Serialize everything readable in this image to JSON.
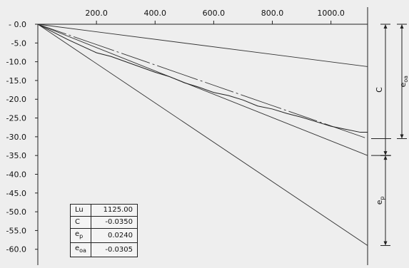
{
  "chart_data": {
    "type": "line",
    "title": "",
    "xlabel": "",
    "ylabel": "",
    "x_axis_position": "top",
    "xlim": [
      0,
      1125
    ],
    "ylim": [
      -61,
      0
    ],
    "xticks": [
      200,
      400,
      600,
      800,
      1000
    ],
    "xtick_labels": [
      "200.0",
      "400.0",
      "600.0",
      "800.0",
      "1000.0"
    ],
    "yticks": [
      0,
      -5,
      -10,
      -15,
      -20,
      -25,
      -30,
      -35,
      -40,
      -45,
      -50,
      -55,
      -60
    ],
    "ytick_labels": [
      "- 0.0",
      "-5.0",
      "-10.0",
      "-15.0",
      "-20.0",
      "-25.0",
      "-30.0",
      "-35.0",
      "-40.0",
      "-45.0",
      "-50.0",
      "-55.0",
      "-60.0"
    ],
    "grid": false,
    "series": [
      {
        "style": "straight",
        "x": [
          0,
          1125
        ],
        "y": [
          0,
          -11.3
        ],
        "color": "#333333"
      },
      {
        "style": "straight",
        "x": [
          0,
          1125
        ],
        "y": [
          0,
          -35.0
        ],
        "color": "#333333"
      },
      {
        "style": "straight",
        "x": [
          0,
          1125
        ],
        "y": [
          0,
          -59.0
        ],
        "color": "#333333"
      },
      {
        "style": "dash-dot",
        "x": [
          0,
          1125
        ],
        "y": [
          0,
          -30.5
        ],
        "color": "#333333"
      },
      {
        "style": "noisy",
        "x": [
          0,
          50,
          100,
          150,
          200,
          250,
          300,
          350,
          400,
          450,
          500,
          550,
          600,
          650,
          700,
          750,
          800,
          850,
          900,
          950,
          1000,
          1050,
          1100,
          1125
        ],
        "y": [
          0,
          -2.0,
          -4.0,
          -5.8,
          -7.6,
          -8.6,
          -10.0,
          -11.4,
          -12.8,
          -14.0,
          -15.6,
          -16.8,
          -18.2,
          -19.0,
          -20.2,
          -21.8,
          -22.6,
          -23.8,
          -24.8,
          -26.0,
          -27.2,
          -28.0,
          -28.8,
          -28.8
        ],
        "color": "#222222"
      }
    ],
    "dimensions": [
      {
        "label": "C",
        "from": 0,
        "to": -35.0,
        "side": "right-inner"
      },
      {
        "label": "e",
        "sub": "oa",
        "from": 0,
        "to": -30.5,
        "side": "right-outer"
      },
      {
        "label": "e",
        "sub": "p",
        "from": -35.0,
        "to": -59.0,
        "side": "right-inner"
      }
    ],
    "table": {
      "rows": [
        {
          "label": "Lu",
          "sub": "",
          "value": "1125.00"
        },
        {
          "label": "C",
          "sub": "",
          "value": "-0.0350"
        },
        {
          "label": "e",
          "sub": "p",
          "value": "0.0240"
        },
        {
          "label": "e",
          "sub": "oa",
          "value": "-0.0305"
        }
      ]
    }
  }
}
